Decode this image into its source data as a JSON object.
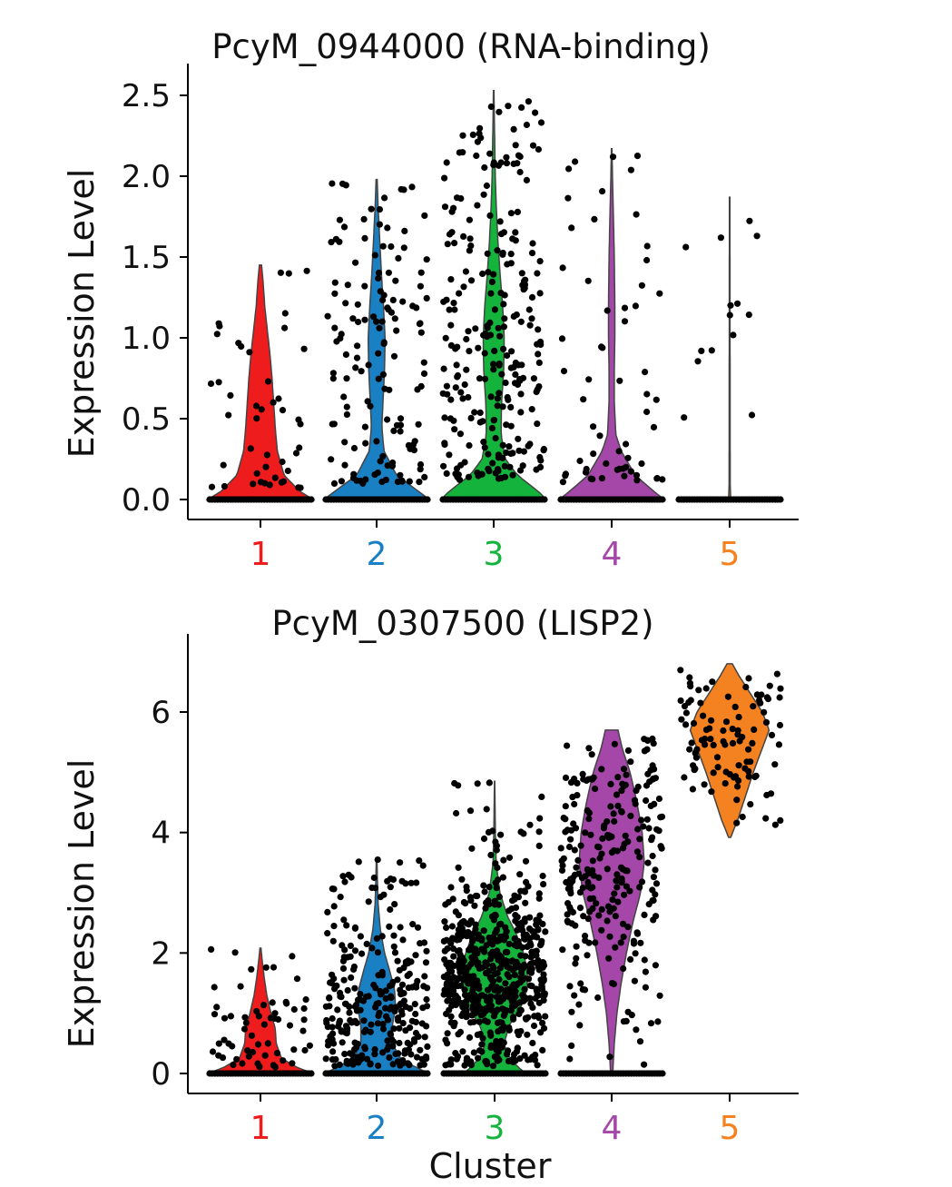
{
  "chart_data": [
    {
      "type": "violin",
      "title": "PcyM_0944000 (RNA-binding)",
      "ylabel": "Expression Level",
      "xlabel": "",
      "ylim": [
        0,
        2.55
      ],
      "yticks": [
        0.0,
        0.5,
        1.0,
        1.5,
        2.0,
        2.5
      ],
      "ytick_labels": [
        "0.0",
        "0.5",
        "1.0",
        "1.5",
        "2.0",
        "2.5"
      ],
      "categories": [
        "1",
        "2",
        "3",
        "4",
        "5"
      ],
      "colors": [
        "#ee1c1c",
        "#1a80c4",
        "#14b43c",
        "#a447a8",
        "#f58220"
      ],
      "groups": [
        {
          "name": "1",
          "max": 1.45,
          "density": [
            [
              0,
              1
            ],
            [
              0.05,
              0.75
            ],
            [
              0.15,
              0.45
            ],
            [
              0.3,
              0.32
            ],
            [
              0.45,
              0.28
            ],
            [
              0.6,
              0.25
            ],
            [
              0.75,
              0.22
            ],
            [
              0.9,
              0.18
            ],
            [
              1.05,
              0.13
            ],
            [
              1.2,
              0.08
            ],
            [
              1.35,
              0.05
            ],
            [
              1.45,
              0.02
            ]
          ],
          "nonzero_points": 45
        },
        {
          "name": "2",
          "max": 1.98,
          "density": [
            [
              0,
              1
            ],
            [
              0.05,
              0.8
            ],
            [
              0.15,
              0.38
            ],
            [
              0.3,
              0.14
            ],
            [
              0.45,
              0.1
            ],
            [
              0.6,
              0.12
            ],
            [
              0.8,
              0.15
            ],
            [
              1.0,
              0.16
            ],
            [
              1.2,
              0.13
            ],
            [
              1.4,
              0.09
            ],
            [
              1.6,
              0.06
            ],
            [
              1.8,
              0.03
            ],
            [
              1.98,
              0.01
            ]
          ],
          "nonzero_points": 140
        },
        {
          "name": "3",
          "max": 2.53,
          "density": [
            [
              0,
              1
            ],
            [
              0.05,
              0.85
            ],
            [
              0.15,
              0.45
            ],
            [
              0.25,
              0.22
            ],
            [
              0.4,
              0.14
            ],
            [
              0.6,
              0.15
            ],
            [
              0.8,
              0.19
            ],
            [
              1.0,
              0.2
            ],
            [
              1.2,
              0.17
            ],
            [
              1.4,
              0.12
            ],
            [
              1.6,
              0.08
            ],
            [
              1.8,
              0.05
            ],
            [
              2.0,
              0.03
            ],
            [
              2.3,
              0.015
            ],
            [
              2.53,
              0.005
            ]
          ],
          "nonzero_points": 260
        },
        {
          "name": "4",
          "max": 2.17,
          "density": [
            [
              0,
              1
            ],
            [
              0.05,
              0.8
            ],
            [
              0.15,
              0.45
            ],
            [
              0.3,
              0.18
            ],
            [
              0.4,
              0.08
            ],
            [
              0.6,
              0.05
            ],
            [
              0.8,
              0.05
            ],
            [
              1.0,
              0.06
            ],
            [
              1.2,
              0.06
            ],
            [
              1.5,
              0.05
            ],
            [
              1.8,
              0.03
            ],
            [
              2.0,
              0.015
            ],
            [
              2.17,
              0.005
            ]
          ],
          "nonzero_points": 60
        },
        {
          "name": "5",
          "max": 1.87,
          "density": [
            [
              0,
              0.02
            ],
            [
              0.1,
              0.01
            ],
            [
              1.87,
              0.005
            ]
          ],
          "nonzero_points": 14
        }
      ]
    },
    {
      "type": "violin",
      "title": "PcyM_0307500 (LISP2)",
      "ylabel": "Expression Level",
      "xlabel": "Cluster",
      "ylim": [
        0,
        6.9
      ],
      "yticks": [
        0,
        2,
        4,
        6
      ],
      "ytick_labels": [
        "0",
        "2",
        "4",
        "6"
      ],
      "categories": [
        "1",
        "2",
        "3",
        "4",
        "5"
      ],
      "colors": [
        "#ee1c1c",
        "#1a80c4",
        "#14b43c",
        "#a447a8",
        "#f58220"
      ],
      "groups": [
        {
          "name": "1",
          "min": 0,
          "max": 2.08,
          "density": [
            [
              0,
              1
            ],
            [
              0.1,
              0.7
            ],
            [
              0.25,
              0.4
            ],
            [
              0.5,
              0.3
            ],
            [
              0.75,
              0.28
            ],
            [
              1.0,
              0.2
            ],
            [
              1.3,
              0.12
            ],
            [
              1.6,
              0.07
            ],
            [
              1.9,
              0.03
            ],
            [
              2.08,
              0.01
            ]
          ],
          "nonzero_points": 60
        },
        {
          "name": "2",
          "min": 0,
          "max": 3.58,
          "density": [
            [
              0,
              1
            ],
            [
              0.1,
              0.75
            ],
            [
              0.25,
              0.45
            ],
            [
              0.5,
              0.3
            ],
            [
              0.8,
              0.3
            ],
            [
              1.1,
              0.36
            ],
            [
              1.4,
              0.34
            ],
            [
              1.7,
              0.25
            ],
            [
              2.0,
              0.15
            ],
            [
              2.4,
              0.07
            ],
            [
              2.8,
              0.03
            ],
            [
              3.2,
              0.015
            ],
            [
              3.58,
              0.005
            ]
          ],
          "nonzero_points": 280
        },
        {
          "name": "3",
          "min": 0,
          "max": 4.85,
          "density": [
            [
              0,
              0.6
            ],
            [
              0.1,
              0.45
            ],
            [
              0.3,
              0.25
            ],
            [
              0.5,
              0.18
            ],
            [
              0.8,
              0.28
            ],
            [
              1.1,
              0.5
            ],
            [
              1.4,
              0.62
            ],
            [
              1.7,
              0.62
            ],
            [
              2.0,
              0.55
            ],
            [
              2.3,
              0.42
            ],
            [
              2.6,
              0.25
            ],
            [
              3.0,
              0.1
            ],
            [
              3.5,
              0.03
            ],
            [
              4.0,
              0.015
            ],
            [
              4.85,
              0.003
            ]
          ],
          "nonzero_points": 600
        },
        {
          "name": "4",
          "min": 0,
          "max": 5.7,
          "density": [
            [
              0,
              0.02
            ],
            [
              0.5,
              0.05
            ],
            [
              1.0,
              0.1
            ],
            [
              1.5,
              0.18
            ],
            [
              2.0,
              0.28
            ],
            [
              2.5,
              0.4
            ],
            [
              3.0,
              0.55
            ],
            [
              3.5,
              0.62
            ],
            [
              4.0,
              0.58
            ],
            [
              4.5,
              0.48
            ],
            [
              5.0,
              0.35
            ],
            [
              5.4,
              0.2
            ],
            [
              5.7,
              0.12
            ]
          ],
          "nonzero_points": 260
        },
        {
          "name": "5",
          "min": 3.92,
          "max": 6.8,
          "density": [
            [
              3.92,
              0.02
            ],
            [
              4.2,
              0.15
            ],
            [
              4.6,
              0.3
            ],
            [
              5.0,
              0.45
            ],
            [
              5.4,
              0.62
            ],
            [
              5.7,
              0.75
            ],
            [
              6.0,
              0.62
            ],
            [
              6.3,
              0.4
            ],
            [
              6.6,
              0.18
            ],
            [
              6.8,
              0.05
            ]
          ],
          "nonzero_points": 100
        }
      ]
    }
  ]
}
